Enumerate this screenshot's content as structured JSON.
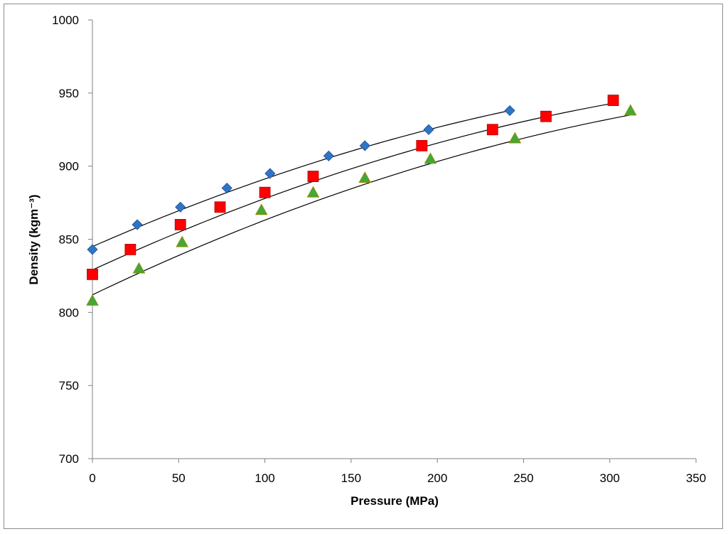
{
  "chart_data": {
    "type": "scatter",
    "title": "",
    "xlabel": "Pressure (MPa)",
    "ylabel": "Density (kgm⁻³)",
    "xlim": [
      0,
      350
    ],
    "ylim": [
      700,
      1000
    ],
    "xticks": [
      0,
      50,
      100,
      150,
      200,
      250,
      300,
      350
    ],
    "yticks": [
      700,
      750,
      800,
      850,
      900,
      950,
      1000
    ],
    "grid": false,
    "legend": "none",
    "series": [
      {
        "name": "series-1",
        "marker": "diamond",
        "color": "#2e75c6",
        "points": [
          [
            0,
            843
          ],
          [
            26,
            860
          ],
          [
            51,
            872
          ],
          [
            78,
            885
          ],
          [
            103,
            895
          ],
          [
            137,
            907
          ],
          [
            158,
            914
          ],
          [
            195,
            925
          ],
          [
            242,
            938
          ]
        ],
        "fit": [
          [
            0,
            845
          ],
          [
            242,
            938
          ]
        ]
      },
      {
        "name": "series-2",
        "marker": "square",
        "color": "#ff0000",
        "points": [
          [
            0,
            826
          ],
          [
            22,
            843
          ],
          [
            51,
            860
          ],
          [
            74,
            872
          ],
          [
            100,
            882
          ],
          [
            128,
            893
          ],
          [
            191,
            914
          ],
          [
            232,
            925
          ],
          [
            263,
            934
          ],
          [
            302,
            945
          ]
        ],
        "fit": [
          [
            0,
            829
          ],
          [
            302,
            943
          ]
        ]
      },
      {
        "name": "series-3",
        "marker": "triangle",
        "color": "#3daa3a",
        "points": [
          [
            0,
            808
          ],
          [
            27,
            830
          ],
          [
            52,
            848
          ],
          [
            98,
            870
          ],
          [
            128,
            882
          ],
          [
            158,
            892
          ],
          [
            196,
            905
          ],
          [
            245,
            919
          ],
          [
            312,
            938
          ]
        ],
        "fit": [
          [
            0,
            812
          ],
          [
            312,
            935
          ]
        ]
      }
    ]
  }
}
